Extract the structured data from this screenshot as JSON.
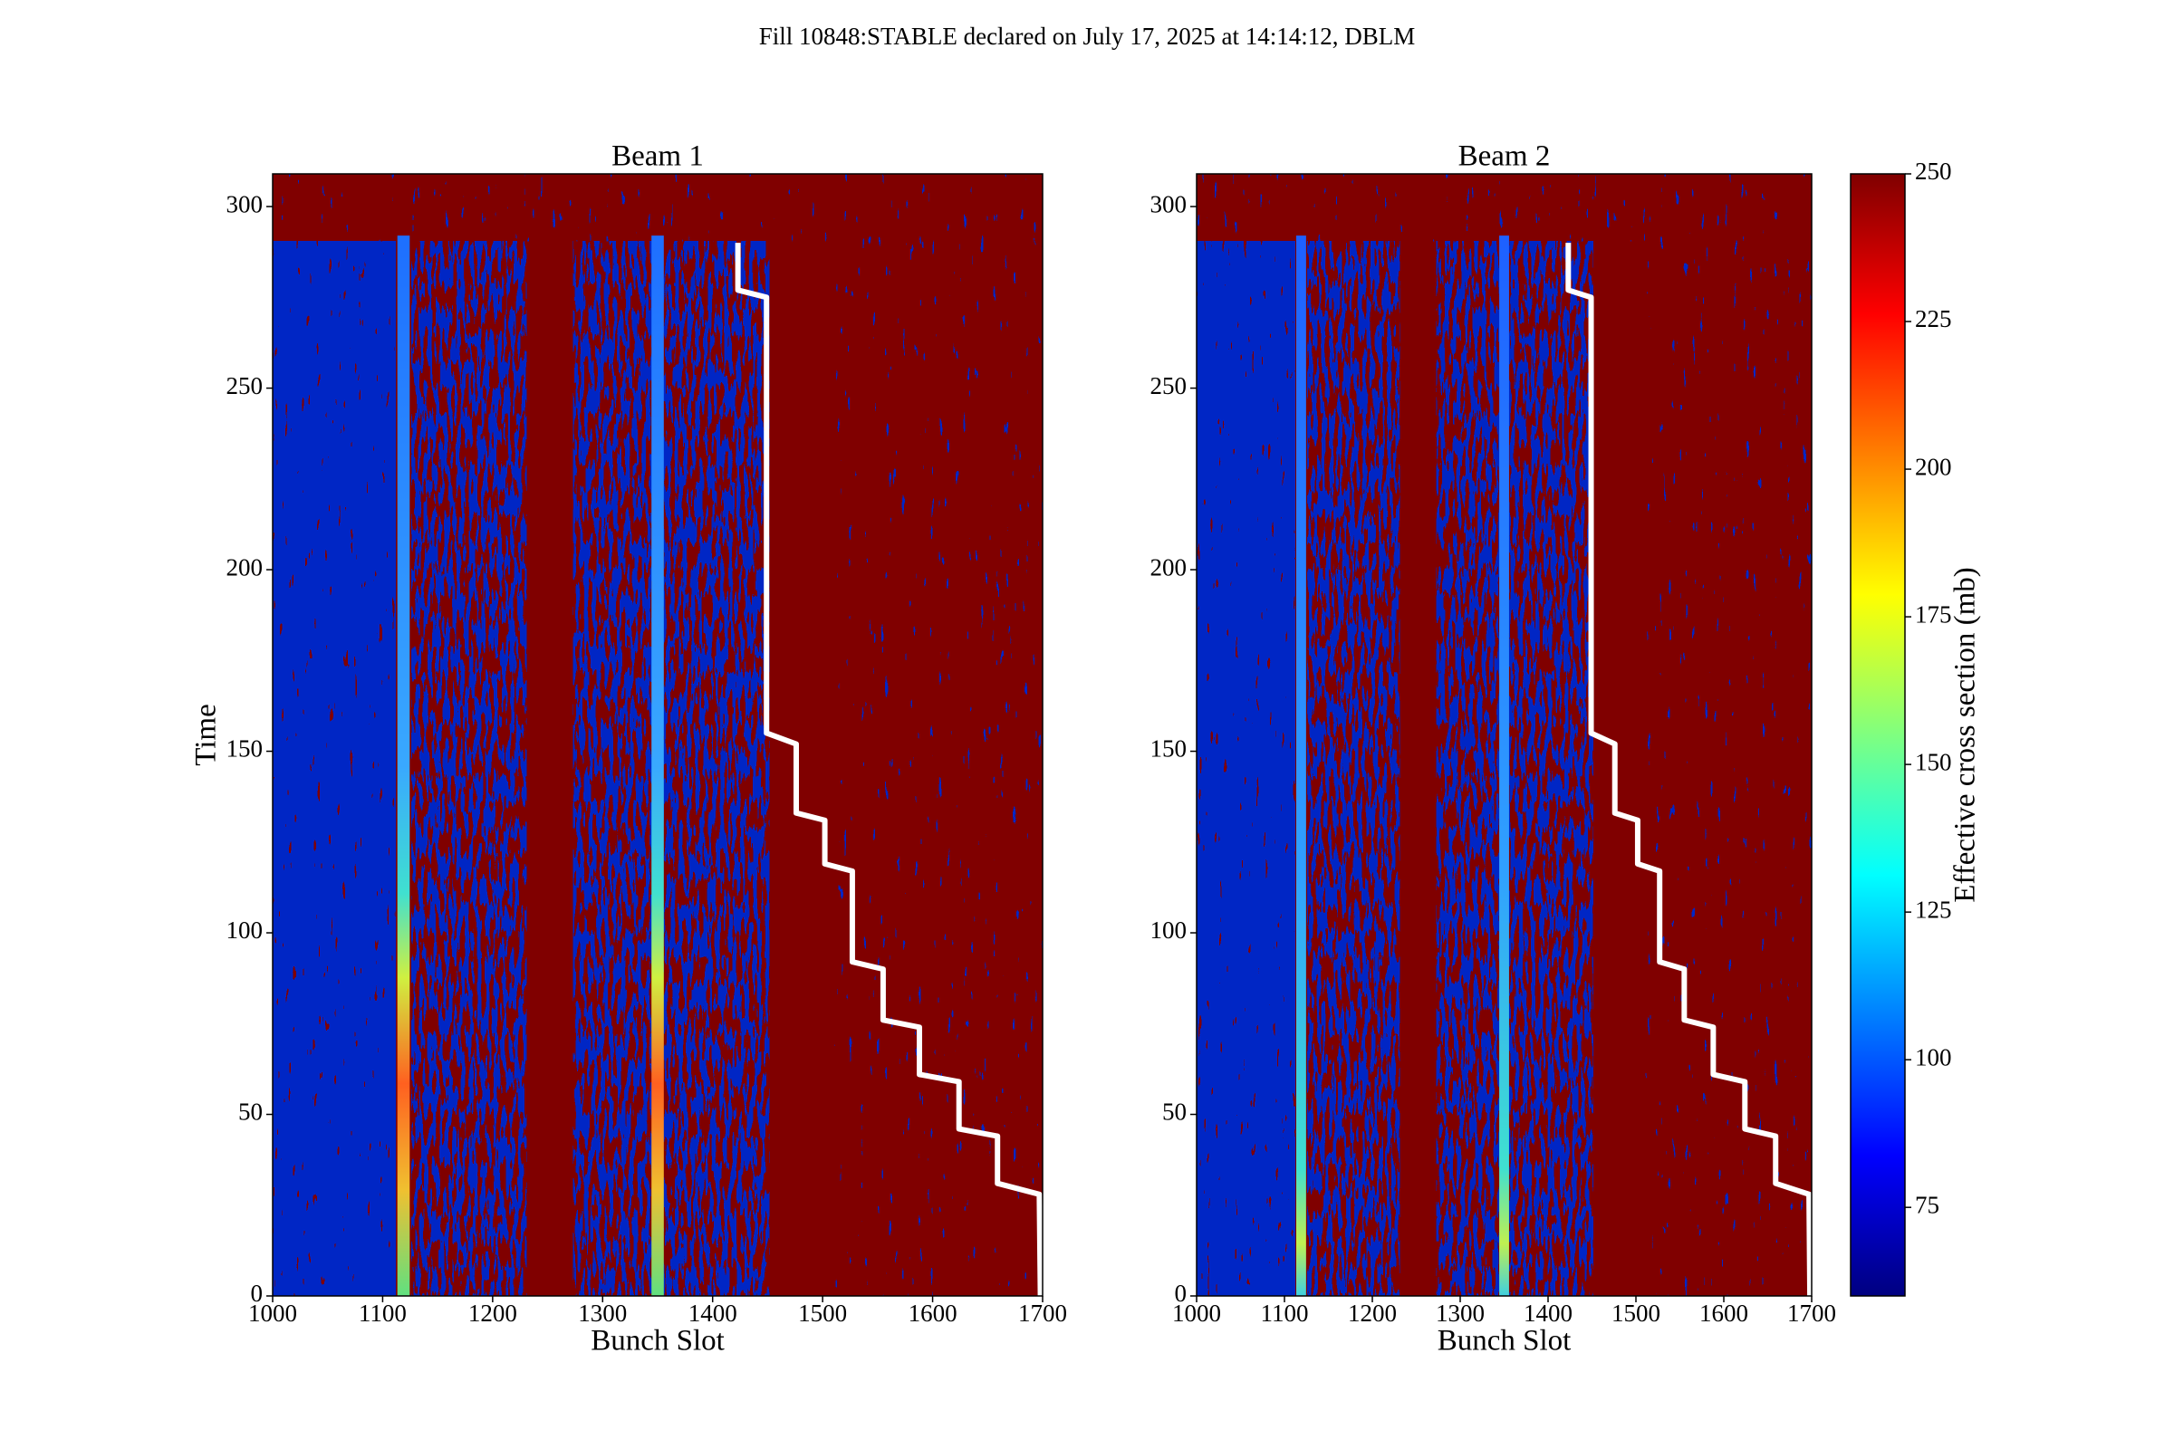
{
  "title": "Fill 10848:STABLE declared on July 17, 2025 at 14:14:12, DBLM",
  "chart_data": [
    {
      "type": "heatmap",
      "title": "Beam 1",
      "xlabel": "Bunch Slot",
      "ylabel": "Time",
      "xlim": [
        1000,
        1700
      ],
      "xticks": [
        1000,
        1100,
        1200,
        1300,
        1400,
        1500,
        1600,
        1700
      ],
      "ylim": [
        0,
        309
      ],
      "yticks": [
        0,
        50,
        100,
        150,
        200,
        250,
        300
      ],
      "series": [
        {
          "color": "#ffffff",
          "x": [
            1423,
            1423,
            1449,
            1449,
            1476,
            1476,
            1502,
            1502,
            1527,
            1527,
            1555,
            1555,
            1588,
            1588,
            1624,
            1624,
            1659,
            1659,
            1697,
            1698
          ],
          "y": [
            290,
            277,
            275,
            155,
            152,
            133,
            131,
            119,
            117,
            92,
            90,
            76,
            74,
            61,
            59,
            46,
            44,
            31,
            28,
            0
          ]
        }
      ]
    },
    {
      "type": "heatmap",
      "title": "Beam 2",
      "xlabel": "Bunch Slot",
      "xlim": [
        1000,
        1700
      ],
      "xticks": [
        1000,
        1100,
        1200,
        1300,
        1400,
        1500,
        1600,
        1700
      ],
      "ylim": [
        0,
        309
      ],
      "yticks": [
        0,
        50,
        100,
        150,
        200,
        250,
        300
      ],
      "series": [
        {
          "color": "#ffffff",
          "x": [
            1423,
            1423,
            1449,
            1449,
            1476,
            1476,
            1502,
            1502,
            1527,
            1527,
            1555,
            1555,
            1588,
            1588,
            1624,
            1624,
            1659,
            1659,
            1697,
            1698
          ],
          "y": [
            290,
            277,
            275,
            155,
            152,
            133,
            131,
            119,
            117,
            92,
            90,
            76,
            74,
            61,
            59,
            46,
            44,
            31,
            28,
            0
          ]
        }
      ]
    }
  ],
  "colorbar": {
    "label": "Effective cross section (mb)",
    "lim": [
      60,
      250
    ],
    "ticks": [
      75,
      100,
      125,
      150,
      175,
      200,
      225,
      250
    ]
  }
}
